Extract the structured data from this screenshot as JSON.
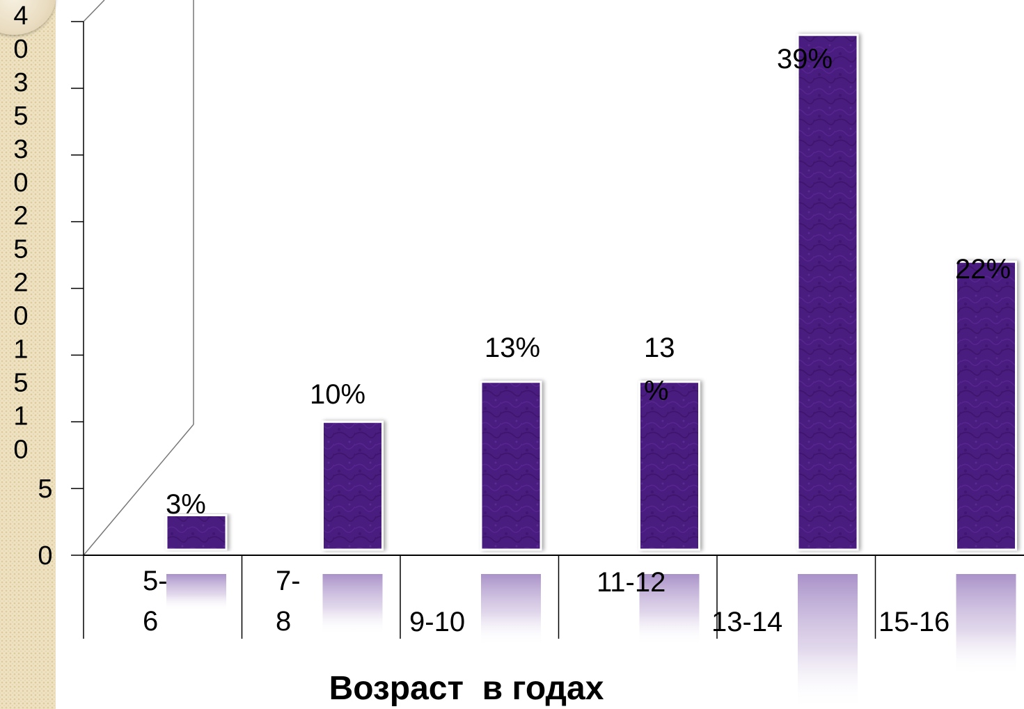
{
  "chart_data": {
    "type": "bar",
    "categories": [
      "5-6",
      "7-8",
      "9-10",
      "11-12",
      "13-14",
      "15-16"
    ],
    "category_label_lines": [
      [
        "5-",
        "6"
      ],
      [
        "7-",
        "8"
      ],
      [
        "9-10"
      ],
      [
        "11-12"
      ],
      [
        "13-14"
      ],
      [
        "15-16"
      ]
    ],
    "values": [
      3,
      10,
      13,
      13,
      39,
      22
    ],
    "data_labels": [
      "3%",
      "10%",
      "13%",
      "13",
      "39%",
      "22%"
    ],
    "data_label_extra": [
      "",
      "",
      "",
      "%",
      "",
      ""
    ],
    "ylim": [
      0,
      40
    ],
    "y_ticks": [
      0,
      5,
      10,
      15,
      20,
      25,
      30,
      35,
      40
    ],
    "y_tick_label_lines": [
      [
        "0"
      ],
      [
        "5"
      ],
      [
        "1",
        "0"
      ],
      [
        "1",
        "5"
      ],
      [
        "2",
        "0"
      ],
      [
        "2",
        "5"
      ],
      [
        "3",
        "0"
      ],
      [
        "3",
        "5"
      ],
      [
        "4",
        "0"
      ]
    ],
    "xlabel": "Возраст  в годах",
    "ylabel": "",
    "bar_color": "#4a1a80",
    "grid": false,
    "legend": "none"
  }
}
